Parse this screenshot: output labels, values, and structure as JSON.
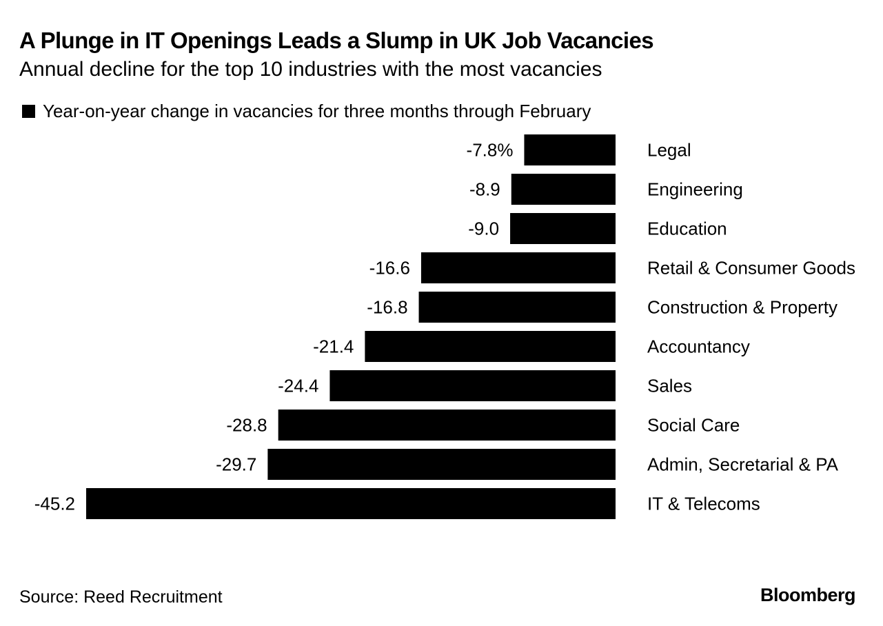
{
  "chart_data": {
    "type": "bar",
    "orientation": "horizontal",
    "title": "A Plunge in IT Openings Leads a Slump in UK Job Vacancies",
    "subtitle": "Annual decline for the top 10 industries with the most vacancies",
    "legend": [
      "Year-on-year change in vacancies for three months through February"
    ],
    "categories": [
      "Legal",
      "Engineering",
      "Education",
      "Retail & Consumer Goods",
      "Construction & Property",
      "Accountancy",
      "Sales",
      "Social Care",
      "Admin, Secretarial & PA",
      "IT & Telecoms"
    ],
    "values": [
      -7.8,
      -8.9,
      -9.0,
      -16.6,
      -16.8,
      -21.4,
      -24.4,
      -28.8,
      -29.7,
      -45.2
    ],
    "data_labels": [
      "-7.8%",
      "-8.9",
      "-9.0",
      "-16.6",
      "-16.8",
      "-21.4",
      "-24.4",
      "-28.8",
      "-29.7",
      "-45.2"
    ],
    "unit": "%",
    "xlim": [
      -45.2,
      0
    ],
    "bar_color": "#000000"
  },
  "footer": {
    "source": "Source: Reed Recruitment",
    "brand": "Bloomberg"
  }
}
